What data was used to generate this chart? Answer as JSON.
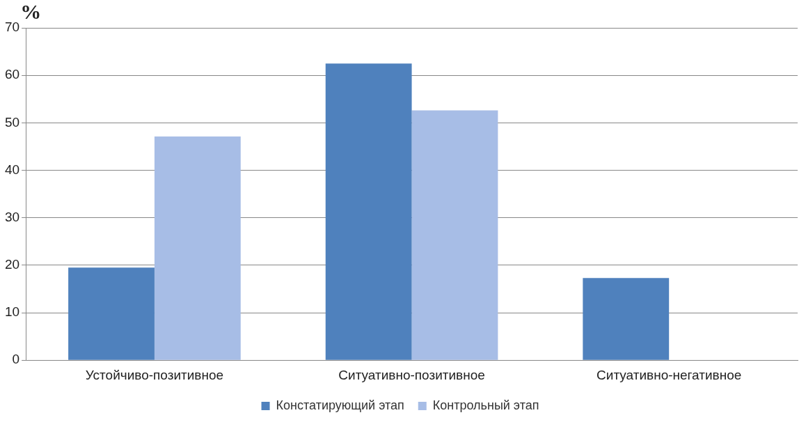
{
  "chart_data": {
    "type": "bar",
    "ylabel": "%",
    "categories": [
      "Устойчиво-позитивное",
      "Ситуативно-позитивное",
      "Ситуативно-негативное"
    ],
    "series": [
      {
        "name": "Констатирующий этап",
        "color": "#4f81bd",
        "values": [
          19.5,
          62.5,
          17.3
        ]
      },
      {
        "name": "Контрольный этап",
        "color": "#a7bde6",
        "values": [
          47.1,
          52.6,
          0
        ]
      }
    ],
    "ylim": [
      0,
      70
    ],
    "yticks": [
      0,
      10,
      20,
      30,
      40,
      50,
      60,
      70
    ],
    "grid": "y",
    "legend": "bottom"
  }
}
